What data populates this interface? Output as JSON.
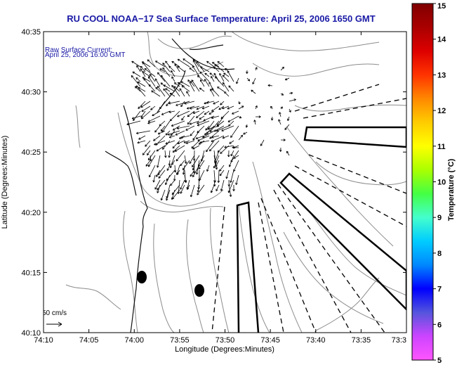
{
  "title": "RU COOL  NOAA−17  Sea Surface Temperature:  April 25, 2006 1650 GMT",
  "annotation_line1": "Raw Surface Current:",
  "annotation_line2": "April 25, 2006 16:00 GMT",
  "xlabel": "Longitude (Degrees:Minutes)",
  "ylabel": "Latitude (Degrees:Minutes)",
  "colorbar_label": "Temperature (°C)",
  "scale_label": "50 cm/s",
  "x_ticks": [
    "74:10",
    "74:05",
    "74:00",
    "73:55",
    "73:50",
    "73:45",
    "73:40",
    "73:35",
    "73:3"
  ],
  "y_ticks": [
    "40:35",
    "40:30",
    "40:25",
    "40:20",
    "40:15",
    "40:10"
  ],
  "colorbar_ticks": [
    "15",
    "14",
    "13",
    "12",
    "11",
    "10",
    "9",
    "8",
    "7",
    "6",
    "5"
  ],
  "colorbar_colors": [
    "#ff55ff",
    "#cc44ff",
    "#5555dd",
    "#0000ff",
    "#0088ff",
    "#00ccff",
    "#44ffcc",
    "#44ff44",
    "#aaff00",
    "#ffff00",
    "#ffcc00",
    "#ff8800",
    "#ff3300",
    "#dd0000",
    "#aa0000",
    "#800000"
  ],
  "colors": {
    "title": "#1a1aa6",
    "frame": "#000000",
    "contour": "#8c8c8c",
    "coast": "#111111"
  }
}
